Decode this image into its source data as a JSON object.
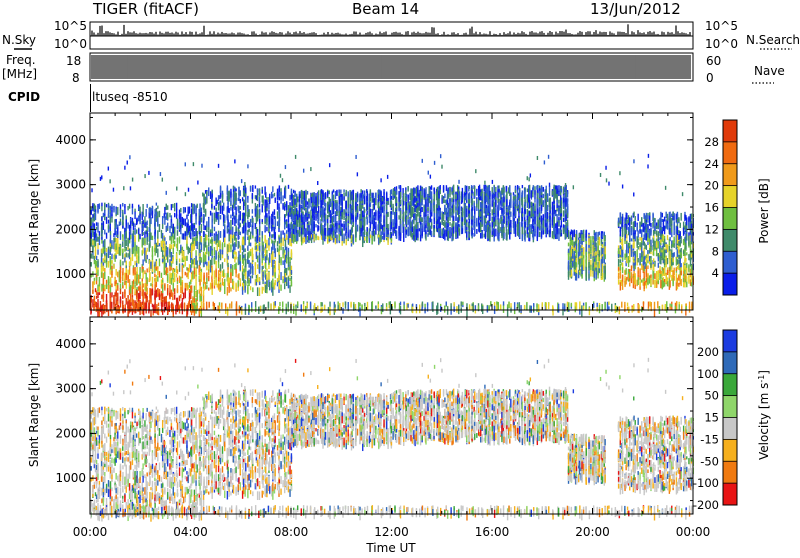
{
  "header": {
    "station": "TIGER (fitACF)",
    "beam": "Beam 14",
    "date": "13/Jun/2012"
  },
  "side_labels": {
    "nsky": "N.Sky",
    "nsky_hi": "10^5",
    "nsky_lo": "10^0",
    "freq": "Freq.",
    "freq_unit": "[MHz]",
    "freq_hi": "18",
    "freq_lo": "8",
    "cpid": "CPID",
    "nsearch": "N.Search",
    "nsearch_hi": "10^5",
    "nsearch_lo": "10^0",
    "nave": "Nave",
    "nave_hi": "60",
    "nave_lo": "0"
  },
  "cpid_text": "ltuseq -8510",
  "colors": {
    "power": [
      "#0a1ee8",
      "#2f5ed0",
      "#3f8a6a",
      "#6fbf40",
      "#e6d32a",
      "#f09a1a",
      "#f06a10",
      "#e03a0a",
      "#d81818"
    ],
    "velocity": [
      "#e81414",
      "#f07a10",
      "#f6b01e",
      "#c8c8c8",
      "#8fd66a",
      "#3aa83a",
      "#2f6ab8",
      "#1c3ce0"
    ],
    "axis": "#000000"
  },
  "chart_data": [
    {
      "type": "heatmap",
      "quantity": "Power",
      "xlabel": "",
      "ylabel": "Slant Range [km]",
      "ylim": [
        200,
        4600
      ],
      "xlim": [
        0,
        24
      ],
      "yticks": [
        "1000",
        "2000",
        "3000",
        "4000"
      ],
      "colorbar": {
        "label": "Power [dB]",
        "ticks": [
          "4",
          "8",
          "12",
          "16",
          "20",
          "24",
          "28"
        ],
        "range": [
          0,
          32
        ]
      },
      "echo_regions": [
        {
          "t0": 0.0,
          "t1": 4.5,
          "r0": 200,
          "r1": 2600,
          "level": "mixed-high-near"
        },
        {
          "t0": 4.5,
          "t1": 8.0,
          "r0": 700,
          "r1": 3000,
          "level": "mixed"
        },
        {
          "t0": 8.0,
          "t1": 12.0,
          "r0": 1800,
          "r1": 2900,
          "level": "medium"
        },
        {
          "t0": 12.0,
          "t1": 19.0,
          "r0": 1900,
          "r1": 3000,
          "level": "medium"
        },
        {
          "t0": 19.0,
          "t1": 20.5,
          "r0": 1000,
          "r1": 2000,
          "level": "medium"
        },
        {
          "t0": 21.0,
          "t1": 24.0,
          "r0": 800,
          "r1": 2400,
          "level": "mixed"
        },
        {
          "t0": 0.0,
          "t1": 24.0,
          "r0": 250,
          "r1": 400,
          "level": "low"
        }
      ]
    },
    {
      "type": "heatmap",
      "quantity": "Velocity",
      "xlabel": "Time UT",
      "ylabel": "Slant Range [km]",
      "ylim": [
        200,
        4600
      ],
      "xlim": [
        0,
        24
      ],
      "yticks": [
        "1000",
        "2000",
        "3000",
        "4000"
      ],
      "xticks": [
        "00:00",
        "04:00",
        "08:00",
        "12:00",
        "16:00",
        "20:00",
        "00:00"
      ],
      "colorbar": {
        "label": "Velocity [m s-1]",
        "ticks": [
          "200",
          "100",
          "50",
          "15",
          "-15",
          "-50",
          "-100",
          "-200"
        ]
      }
    }
  ]
}
